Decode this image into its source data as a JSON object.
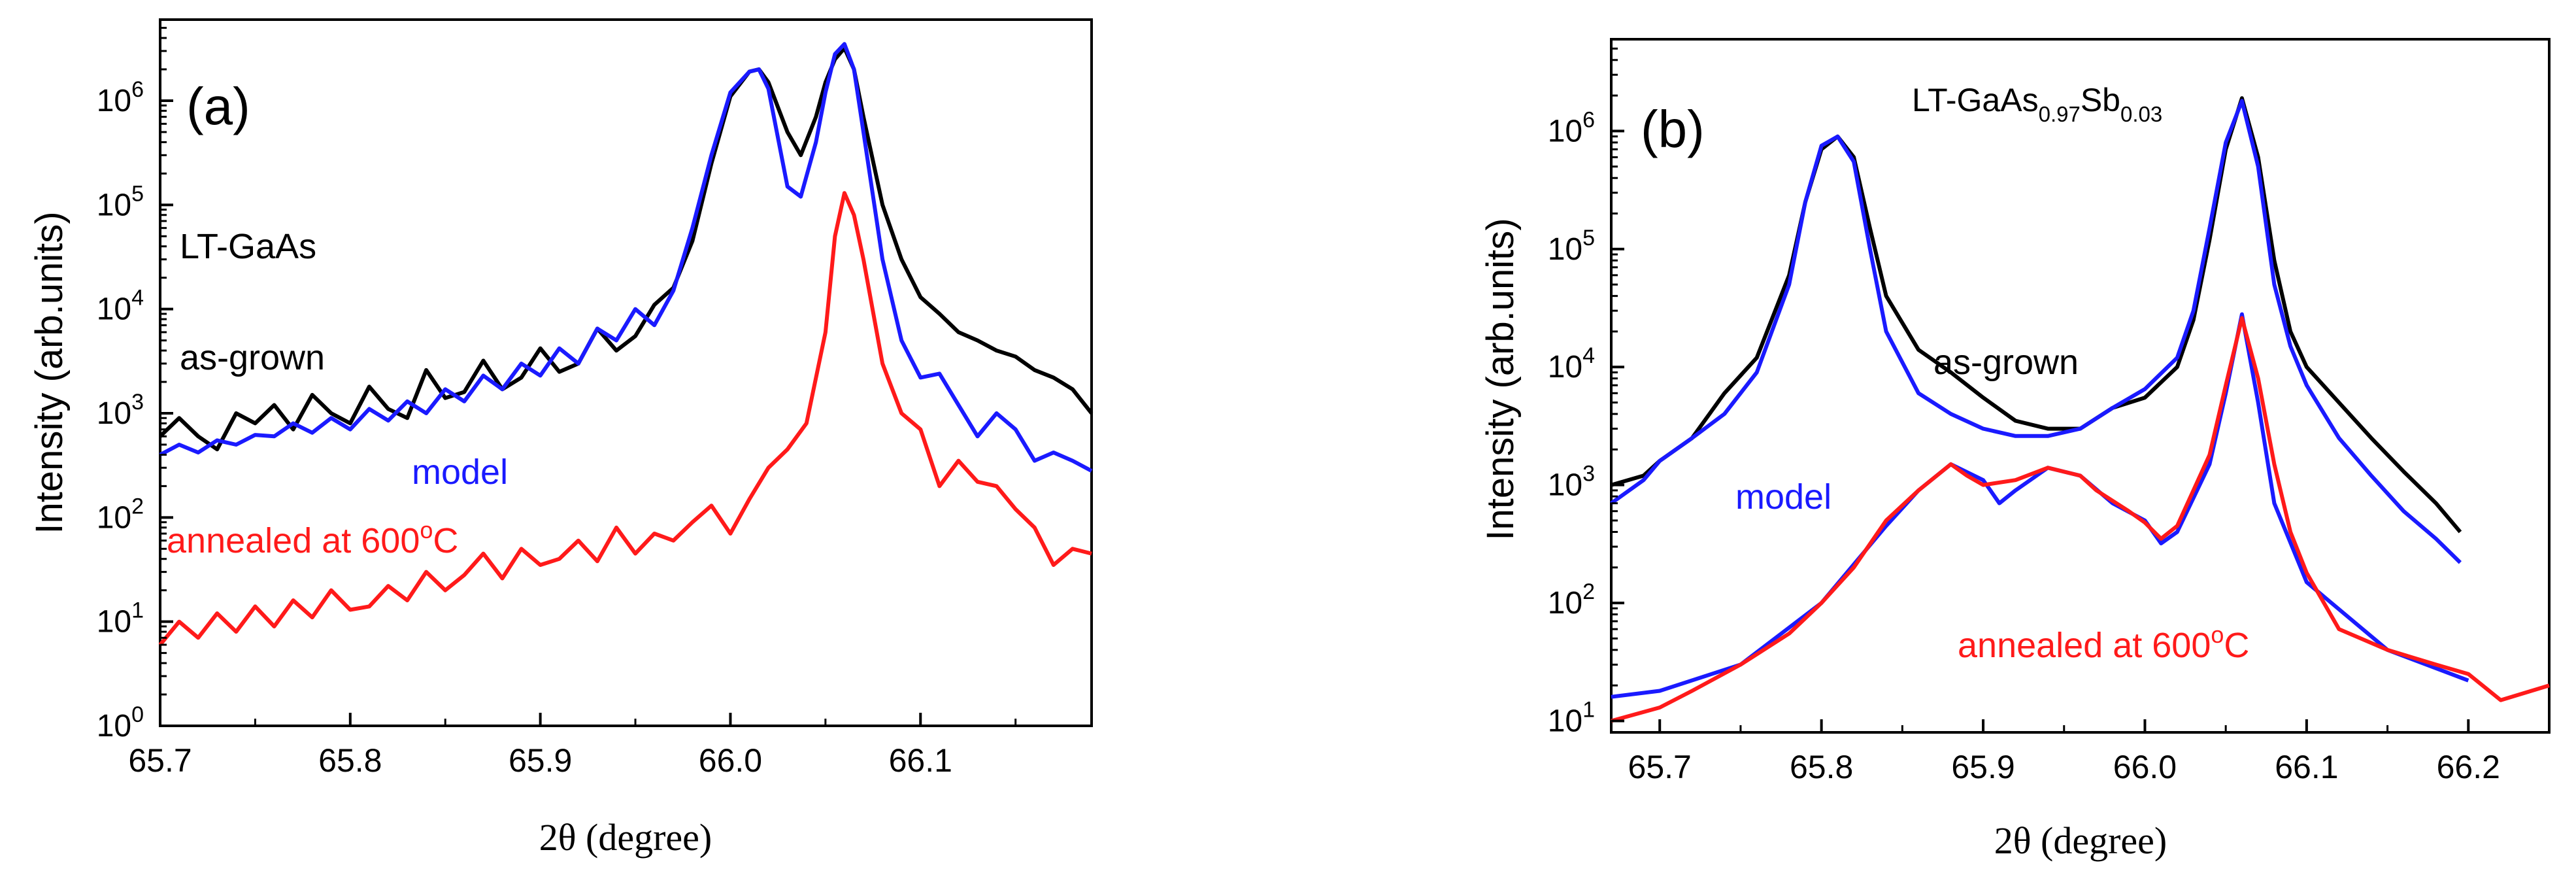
{
  "colors": {
    "as_grown": "#000000",
    "model": "#1a1aff",
    "annealed": "#ff1a1a",
    "axis": "#000000"
  },
  "chart_data": [
    {
      "type": "line",
      "panel_label": "(a)",
      "xlabel": "2θ (degree)",
      "ylabel": "Intensity (arb.units)",
      "xlim": [
        65.7,
        66.19
      ],
      "ylim": [
        1,
        6000000
      ],
      "yscale": "log",
      "grid": false,
      "x_ticks": [
        65.7,
        65.8,
        65.9,
        66.0,
        66.1
      ],
      "x_tick_labels": [
        "65.7",
        "65.8",
        "65.9",
        "66.0",
        "66.1"
      ],
      "y_ticks": [
        1,
        10,
        100,
        1000,
        10000,
        100000,
        1000000
      ],
      "y_tick_labels": [
        "10^0",
        "10^1",
        "10^2",
        "10^3",
        "10^4",
        "10^5",
        "10^6"
      ],
      "annotations": {
        "sample": "LT-GaAs",
        "as_grown": "as-grown",
        "model": "model",
        "annealed": "annealed at 600°C"
      },
      "series": [
        {
          "key": "as_grown",
          "x": [
            65.7,
            65.71,
            65.72,
            65.73,
            65.74,
            65.75,
            65.76,
            65.77,
            65.78,
            65.79,
            65.8,
            65.81,
            65.82,
            65.83,
            65.84,
            65.85,
            65.86,
            65.87,
            65.88,
            65.89,
            65.9,
            65.91,
            65.92,
            65.93,
            65.94,
            65.95,
            65.96,
            65.97,
            65.98,
            65.99,
            66.0,
            66.01,
            66.015,
            66.02,
            66.03,
            66.037,
            66.045,
            66.05,
            66.055,
            66.06,
            66.065,
            66.07,
            66.08,
            66.09,
            66.1,
            66.11,
            66.12,
            66.13,
            66.14,
            66.15,
            66.16,
            66.17,
            66.18,
            66.19
          ],
          "y": [
            600,
            900,
            600,
            450,
            1000,
            800,
            1200,
            700,
            1500,
            1000,
            800,
            1800,
            1100,
            900,
            2600,
            1400,
            1600,
            3200,
            1700,
            2200,
            4200,
            2500,
            3000,
            6500,
            4000,
            5500,
            11000,
            16000,
            45000,
            250000,
            1100000,
            1900000,
            2000000,
            1500000,
            500000,
            300000,
            700000,
            1500000,
            2500000,
            3200000,
            2000000,
            700000,
            100000,
            30000,
            13000,
            9000,
            6000,
            5000,
            4000,
            3500,
            2600,
            2200,
            1700,
            1000
          ]
        },
        {
          "key": "model",
          "x": [
            65.7,
            65.71,
            65.72,
            65.73,
            65.74,
            65.75,
            65.76,
            65.77,
            65.78,
            65.79,
            65.8,
            65.81,
            65.82,
            65.83,
            65.84,
            65.85,
            65.86,
            65.87,
            65.88,
            65.89,
            65.9,
            65.91,
            65.92,
            65.93,
            65.94,
            65.95,
            65.96,
            65.97,
            65.98,
            65.99,
            66.0,
            66.01,
            66.015,
            66.02,
            66.03,
            66.037,
            66.045,
            66.05,
            66.055,
            66.06,
            66.065,
            66.07,
            66.08,
            66.09,
            66.1,
            66.11,
            66.12,
            66.13,
            66.14,
            66.15,
            66.16,
            66.17,
            66.18,
            66.19
          ],
          "y": [
            400,
            500,
            420,
            550,
            500,
            620,
            600,
            800,
            650,
            900,
            700,
            1100,
            850,
            1300,
            1000,
            1700,
            1300,
            2300,
            1700,
            3000,
            2300,
            4200,
            3000,
            6500,
            5000,
            10000,
            7000,
            15000,
            60000,
            300000,
            1200000,
            1900000,
            2000000,
            1300000,
            150000,
            120000,
            400000,
            1200000,
            2800000,
            3500000,
            2000000,
            500000,
            30000,
            5000,
            2200,
            2400,
            1200,
            600,
            1000,
            700,
            350,
            420,
            350,
            280
          ]
        },
        {
          "key": "annealed",
          "x": [
            65.7,
            65.71,
            65.72,
            65.73,
            65.74,
            65.75,
            65.76,
            65.77,
            65.78,
            65.79,
            65.8,
            65.81,
            65.82,
            65.83,
            65.84,
            65.85,
            65.86,
            65.87,
            65.88,
            65.89,
            65.9,
            65.91,
            65.92,
            65.93,
            65.94,
            65.95,
            65.96,
            65.97,
            65.98,
            65.99,
            66.0,
            66.01,
            66.02,
            66.03,
            66.04,
            66.05,
            66.055,
            66.06,
            66.065,
            66.07,
            66.08,
            66.09,
            66.1,
            66.11,
            66.12,
            66.13,
            66.14,
            66.15,
            66.16,
            66.17,
            66.18,
            66.19
          ],
          "y": [
            6,
            10,
            7,
            12,
            8,
            14,
            9,
            16,
            11,
            20,
            13,
            14,
            22,
            16,
            30,
            20,
            28,
            45,
            26,
            50,
            35,
            40,
            60,
            38,
            80,
            45,
            70,
            60,
            90,
            130,
            70,
            150,
            300,
            450,
            800,
            6000,
            50000,
            130000,
            80000,
            30000,
            3000,
            1000,
            700,
            200,
            350,
            220,
            200,
            120,
            80,
            35,
            50,
            45
          ]
        }
      ]
    },
    {
      "type": "line",
      "panel_label": "(b)",
      "title": "LT-GaAs0.97Sb0.03",
      "title_parts": {
        "base": "LT-GaAs",
        "sub1": "0.97",
        "mid": "Sb",
        "sub2": "0.03"
      },
      "xlabel": "2θ (degree)",
      "ylabel": "Intensity (arb.units)",
      "xlim": [
        65.67,
        66.25
      ],
      "ylim": [
        8,
        6000000
      ],
      "yscale": "log",
      "grid": false,
      "x_ticks": [
        65.7,
        65.8,
        65.9,
        66.0,
        66.1,
        66.2
      ],
      "x_tick_labels": [
        "65.7",
        "65.8",
        "65.9",
        "66.0",
        "66.1",
        "66.2"
      ],
      "y_ticks": [
        10,
        100,
        1000,
        10000,
        100000,
        1000000
      ],
      "y_tick_labels": [
        "10^1",
        "10^2",
        "10^3",
        "10^4",
        "10^5",
        "10^6"
      ],
      "annotations": {
        "as_grown": "as-grown",
        "model": "model",
        "annealed": "annealed at 600°C"
      },
      "series": [
        {
          "key": "as_grown",
          "x": [
            65.67,
            65.69,
            65.7,
            65.72,
            65.74,
            65.76,
            65.78,
            65.79,
            65.8,
            65.81,
            65.82,
            65.83,
            65.84,
            65.86,
            65.88,
            65.9,
            65.92,
            65.94,
            65.96,
            65.98,
            66.0,
            66.02,
            66.03,
            66.04,
            66.05,
            66.06,
            66.07,
            66.08,
            66.09,
            66.1,
            66.12,
            66.14,
            66.16,
            66.18,
            66.195
          ],
          "y": [
            1000,
            1200,
            1600,
            2500,
            6000,
            12000,
            60000,
            250000,
            700000,
            900000,
            600000,
            150000,
            40000,
            14000,
            9000,
            5500,
            3500,
            3000,
            3000,
            4500,
            5500,
            10000,
            25000,
            120000,
            700000,
            1900000,
            600000,
            80000,
            20000,
            10000,
            5000,
            2500,
            1300,
            700,
            400
          ]
        },
        {
          "key": "model",
          "x": [
            65.67,
            65.69,
            65.7,
            65.72,
            65.74,
            65.76,
            65.78,
            65.79,
            65.8,
            65.81,
            65.82,
            65.83,
            65.84,
            65.86,
            65.88,
            65.9,
            65.92,
            65.94,
            65.96,
            65.98,
            66.0,
            66.02,
            66.03,
            66.04,
            66.05,
            66.06,
            66.07,
            66.08,
            66.09,
            66.1,
            66.12,
            66.14,
            66.16,
            66.18,
            66.195
          ],
          "y": [
            700,
            1100,
            1600,
            2500,
            4000,
            9000,
            50000,
            250000,
            750000,
            900000,
            550000,
            100000,
            20000,
            6000,
            4000,
            3000,
            2600,
            2600,
            3000,
            4500,
            6500,
            12000,
            30000,
            150000,
            800000,
            1800000,
            500000,
            50000,
            15000,
            7000,
            2500,
            1200,
            600,
            350,
            220
          ]
        },
        {
          "key": "annealed_model",
          "x": [
            65.67,
            65.7,
            65.75,
            65.8,
            65.84,
            65.86,
            65.88,
            65.9,
            65.91,
            65.92,
            65.94,
            65.96,
            65.98,
            66.0,
            66.01,
            66.02,
            66.04,
            66.05,
            66.06,
            66.07,
            66.08,
            66.1,
            66.15,
            66.2
          ],
          "y": [
            16,
            18,
            30,
            100,
            450,
            900,
            1500,
            1100,
            700,
            900,
            1400,
            1200,
            700,
            500,
            320,
            400,
            1500,
            6000,
            28000,
            5000,
            700,
            150,
            40,
            22
          ]
        },
        {
          "key": "annealed",
          "x": [
            65.67,
            65.7,
            65.72,
            65.75,
            65.78,
            65.8,
            65.82,
            65.84,
            65.86,
            65.88,
            65.89,
            65.9,
            65.92,
            65.94,
            65.96,
            65.97,
            65.99,
            66.0,
            66.01,
            66.02,
            66.03,
            66.04,
            66.05,
            66.06,
            66.07,
            66.08,
            66.09,
            66.1,
            66.12,
            66.15,
            66.18,
            66.2,
            66.22,
            66.25
          ],
          "y": [
            10,
            13,
            18,
            30,
            55,
            100,
            200,
            500,
            900,
            1500,
            1200,
            1000,
            1100,
            1400,
            1200,
            900,
            600,
            480,
            350,
            450,
            900,
            1800,
            7000,
            26000,
            8000,
            1500,
            400,
            180,
            60,
            40,
            30,
            25,
            15,
            20
          ]
        }
      ]
    }
  ]
}
